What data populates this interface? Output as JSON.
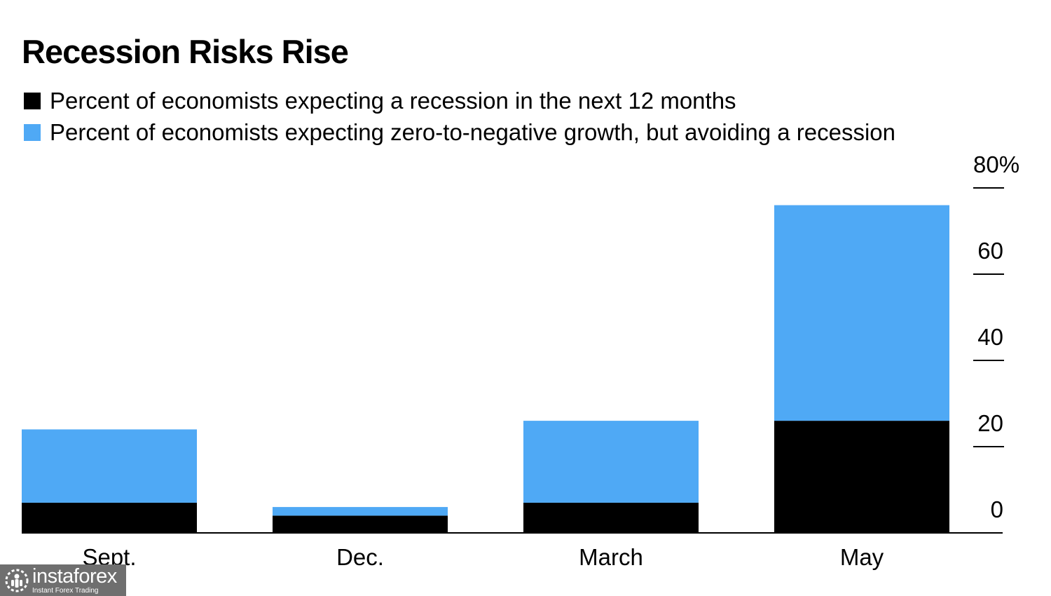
{
  "chart_data": {
    "type": "bar",
    "stacked": true,
    "title": "Recession Risks Rise",
    "categories": [
      "Sept.",
      "Dec.",
      "March",
      "May"
    ],
    "series": [
      {
        "name": "Percent of economists expecting a recession in the next 12 months",
        "color": "#000000",
        "values": [
          7,
          4,
          7,
          26
        ]
      },
      {
        "name": "Percent of economists expecting zero-to-negative growth, but avoiding a recession",
        "color": "#4fa9f5",
        "values": [
          17,
          2,
          19,
          50
        ]
      }
    ],
    "yticks": [
      "0",
      "20",
      "40",
      "60",
      "80%"
    ],
    "ylim": [
      0,
      80
    ],
    "yaxis_side": "right",
    "legend_position": "top-left",
    "grid": false
  },
  "watermark": {
    "name": "instaforex",
    "tagline": "Instant Forex Trading"
  }
}
